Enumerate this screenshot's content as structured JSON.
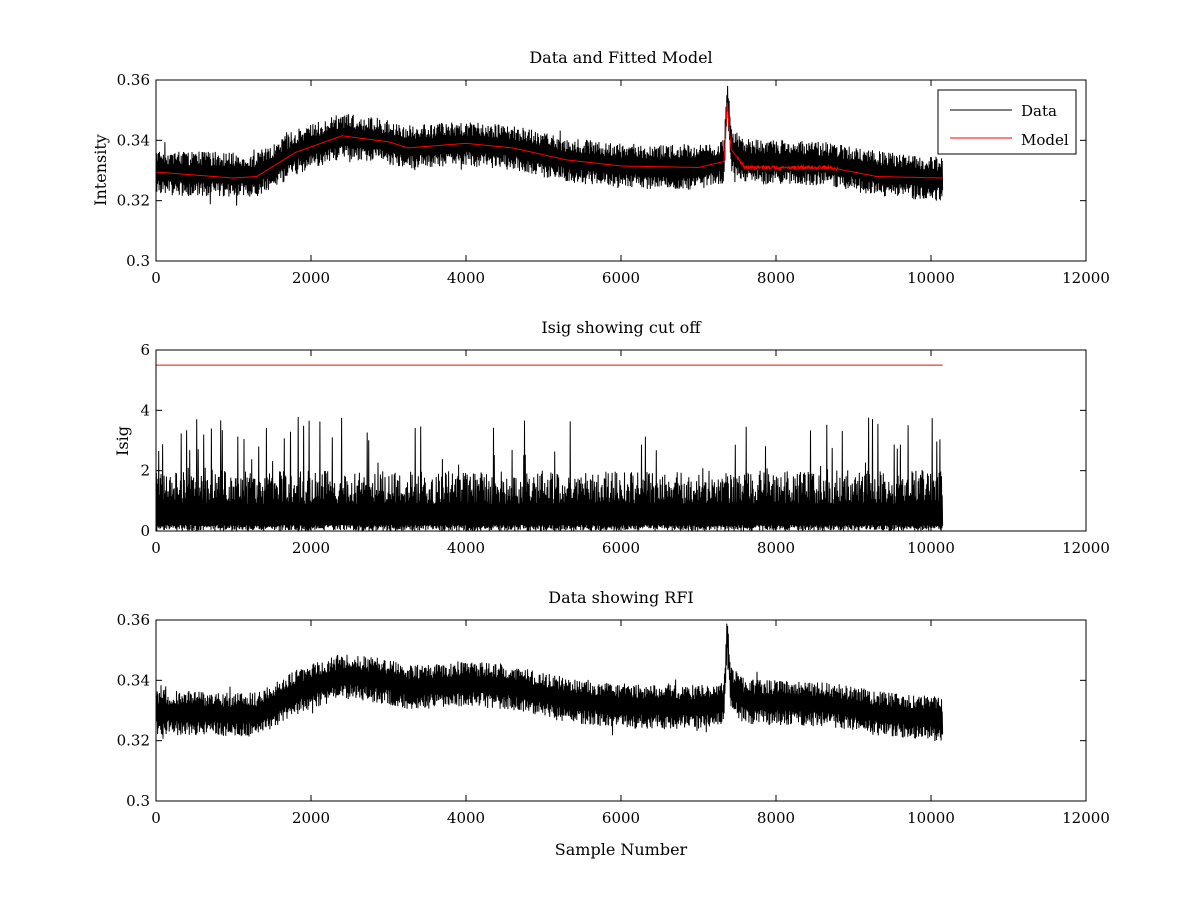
{
  "chart_data": [
    {
      "type": "line",
      "title": "Data and Fitted Model",
      "xlabel": "",
      "ylabel": "Intensity",
      "xlim": [
        0,
        12000
      ],
      "ylim": [
        0.3,
        0.36
      ],
      "x_ticks": [
        0,
        2000,
        4000,
        6000,
        8000,
        10000,
        12000
      ],
      "x_tick_labels": [
        "0",
        "2000",
        "4000",
        "6000",
        "8000",
        "10000",
        "12000"
      ],
      "y_ticks": [
        0.3,
        0.32,
        0.34,
        0.36
      ],
      "y_tick_labels": [
        "0.3",
        "0.32",
        "0.34",
        "0.36"
      ],
      "legend": {
        "position": "top-right",
        "entries": [
          "Data",
          "Model"
        ]
      },
      "series": [
        {
          "name": "Data",
          "color": "#000000",
          "kind": "noisy",
          "x_range": [
            0,
            10150
          ],
          "noise_half_width": 0.0075,
          "trend": [
            [
              0,
              0.3295
            ],
            [
              1000,
              0.3285
            ],
            [
              1300,
              0.3285
            ],
            [
              1800,
              0.336
            ],
            [
              2400,
              0.3415
            ],
            [
              3000,
              0.3395
            ],
            [
              3300,
              0.3375
            ],
            [
              4000,
              0.339
            ],
            [
              4600,
              0.3375
            ],
            [
              5300,
              0.3335
            ],
            [
              6000,
              0.3315
            ],
            [
              7000,
              0.331
            ],
            [
              7330,
              0.333
            ],
            [
              7370,
              0.3545
            ],
            [
              7420,
              0.337
            ],
            [
              7600,
              0.333
            ],
            [
              8700,
              0.332
            ],
            [
              9300,
              0.329
            ],
            [
              10150,
              0.327
            ]
          ]
        },
        {
          "name": "Model",
          "color": "#ff0000",
          "kind": "smooth",
          "x_range": [
            0,
            10150
          ],
          "trend": [
            [
              0,
              0.3295
            ],
            [
              1000,
              0.3275
            ],
            [
              1300,
              0.328
            ],
            [
              1800,
              0.336
            ],
            [
              2400,
              0.3415
            ],
            [
              3000,
              0.3395
            ],
            [
              3250,
              0.3375
            ],
            [
              3500,
              0.338
            ],
            [
              4000,
              0.339
            ],
            [
              4600,
              0.3375
            ],
            [
              5300,
              0.3335
            ],
            [
              6000,
              0.3315
            ],
            [
              7000,
              0.331
            ],
            [
              7330,
              0.333
            ],
            [
              7370,
              0.3525
            ],
            [
              7420,
              0.337
            ],
            [
              7600,
              0.331
            ],
            [
              8700,
              0.331
            ],
            [
              9300,
              0.328
            ],
            [
              10150,
              0.3275
            ]
          ]
        }
      ]
    },
    {
      "type": "line",
      "title": "Isig showing cut off",
      "xlabel": "",
      "ylabel": "Isig",
      "xlim": [
        0,
        12000
      ],
      "ylim": [
        0,
        6
      ],
      "x_ticks": [
        0,
        2000,
        4000,
        6000,
        8000,
        10000,
        12000
      ],
      "x_tick_labels": [
        "0",
        "2000",
        "4000",
        "6000",
        "8000",
        "10000",
        "12000"
      ],
      "y_ticks": [
        0,
        2,
        4,
        6
      ],
      "y_tick_labels": [
        "0",
        "2",
        "4",
        "6"
      ],
      "series": [
        {
          "color": "#000000",
          "kind": "isig",
          "x_range": [
            0,
            10150
          ],
          "typical_max": 2.0,
          "peak_max": 3.8
        },
        {
          "color": "#ff0000",
          "kind": "flat",
          "x_range": [
            0,
            10150
          ],
          "value": 5.5
        }
      ]
    },
    {
      "type": "line",
      "title": "Data showing RFI",
      "xlabel": "Sample Number",
      "ylabel": "",
      "xlim": [
        0,
        12000
      ],
      "ylim": [
        0.3,
        0.36
      ],
      "x_ticks": [
        0,
        2000,
        4000,
        6000,
        8000,
        10000,
        12000
      ],
      "x_tick_labels": [
        "0",
        "2000",
        "4000",
        "6000",
        "8000",
        "10000",
        "12000"
      ],
      "y_ticks": [
        0.3,
        0.32,
        0.34,
        0.36
      ],
      "y_tick_labels": [
        "0.3",
        "0.32",
        "0.34",
        "0.36"
      ],
      "series": [
        {
          "color": "#000000",
          "kind": "noisy",
          "x_range": [
            0,
            10150
          ],
          "noise_half_width": 0.0075,
          "trend": [
            [
              0,
              0.3295
            ],
            [
              1000,
              0.3285
            ],
            [
              1300,
              0.3285
            ],
            [
              1800,
              0.336
            ],
            [
              2400,
              0.3415
            ],
            [
              3000,
              0.3395
            ],
            [
              3300,
              0.3375
            ],
            [
              4000,
              0.339
            ],
            [
              4600,
              0.3375
            ],
            [
              5300,
              0.3335
            ],
            [
              6000,
              0.3315
            ],
            [
              7000,
              0.331
            ],
            [
              7330,
              0.333
            ],
            [
              7370,
              0.3545
            ],
            [
              7420,
              0.337
            ],
            [
              7600,
              0.333
            ],
            [
              8700,
              0.332
            ],
            [
              9300,
              0.329
            ],
            [
              10150,
              0.327
            ]
          ]
        }
      ]
    }
  ]
}
